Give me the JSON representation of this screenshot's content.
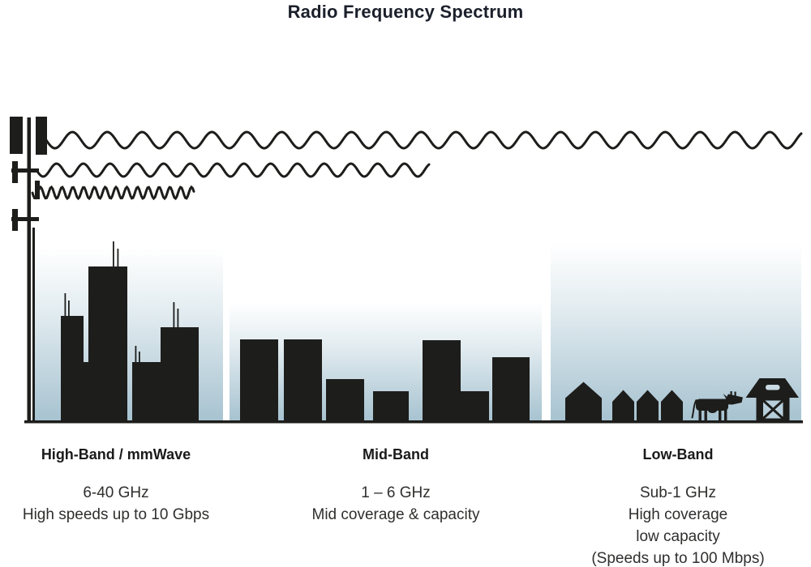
{
  "title": "Radio Frequency Spectrum",
  "bands": [
    {
      "id": "high-band",
      "name": "High-Band / mmWave",
      "frequency": "6-40 GHz",
      "description_lines": [
        "High speeds up to 10 Gbps"
      ]
    },
    {
      "id": "mid-band",
      "name": "Mid-Band",
      "frequency": "1 – 6 GHz",
      "description_lines": [
        "Mid coverage & capacity"
      ]
    },
    {
      "id": "low-band",
      "name": "Low-Band",
      "frequency": "Sub-1 GHz",
      "description_lines": [
        "High coverage",
        "low capacity",
        "(Speeds up to 100 Mbps)"
      ]
    }
  ],
  "icons": {
    "tower": "cell-tower-icon",
    "waves": [
      "long-wavelength-wave-icon",
      "medium-wavelength-wave-icon",
      "short-wavelength-wave-icon"
    ],
    "high_band_scene": "city-skyscrapers-icon",
    "mid_band_scene": "mid-rise-buildings-icon",
    "low_band_scene": [
      "houses-icon",
      "cow-icon",
      "barn-icon"
    ]
  },
  "colors": {
    "background": "#ffffff",
    "silhouette": "#1d1d1b",
    "sky_top": "#ffffff",
    "sky_mid": "#e4edf1",
    "sky_bottom": "#a6c2d0",
    "barn_door": "#b7cedb",
    "barn_vent": "#c9dae2",
    "title_text": "#1b202b",
    "body_text": "#2f2f2e"
  }
}
